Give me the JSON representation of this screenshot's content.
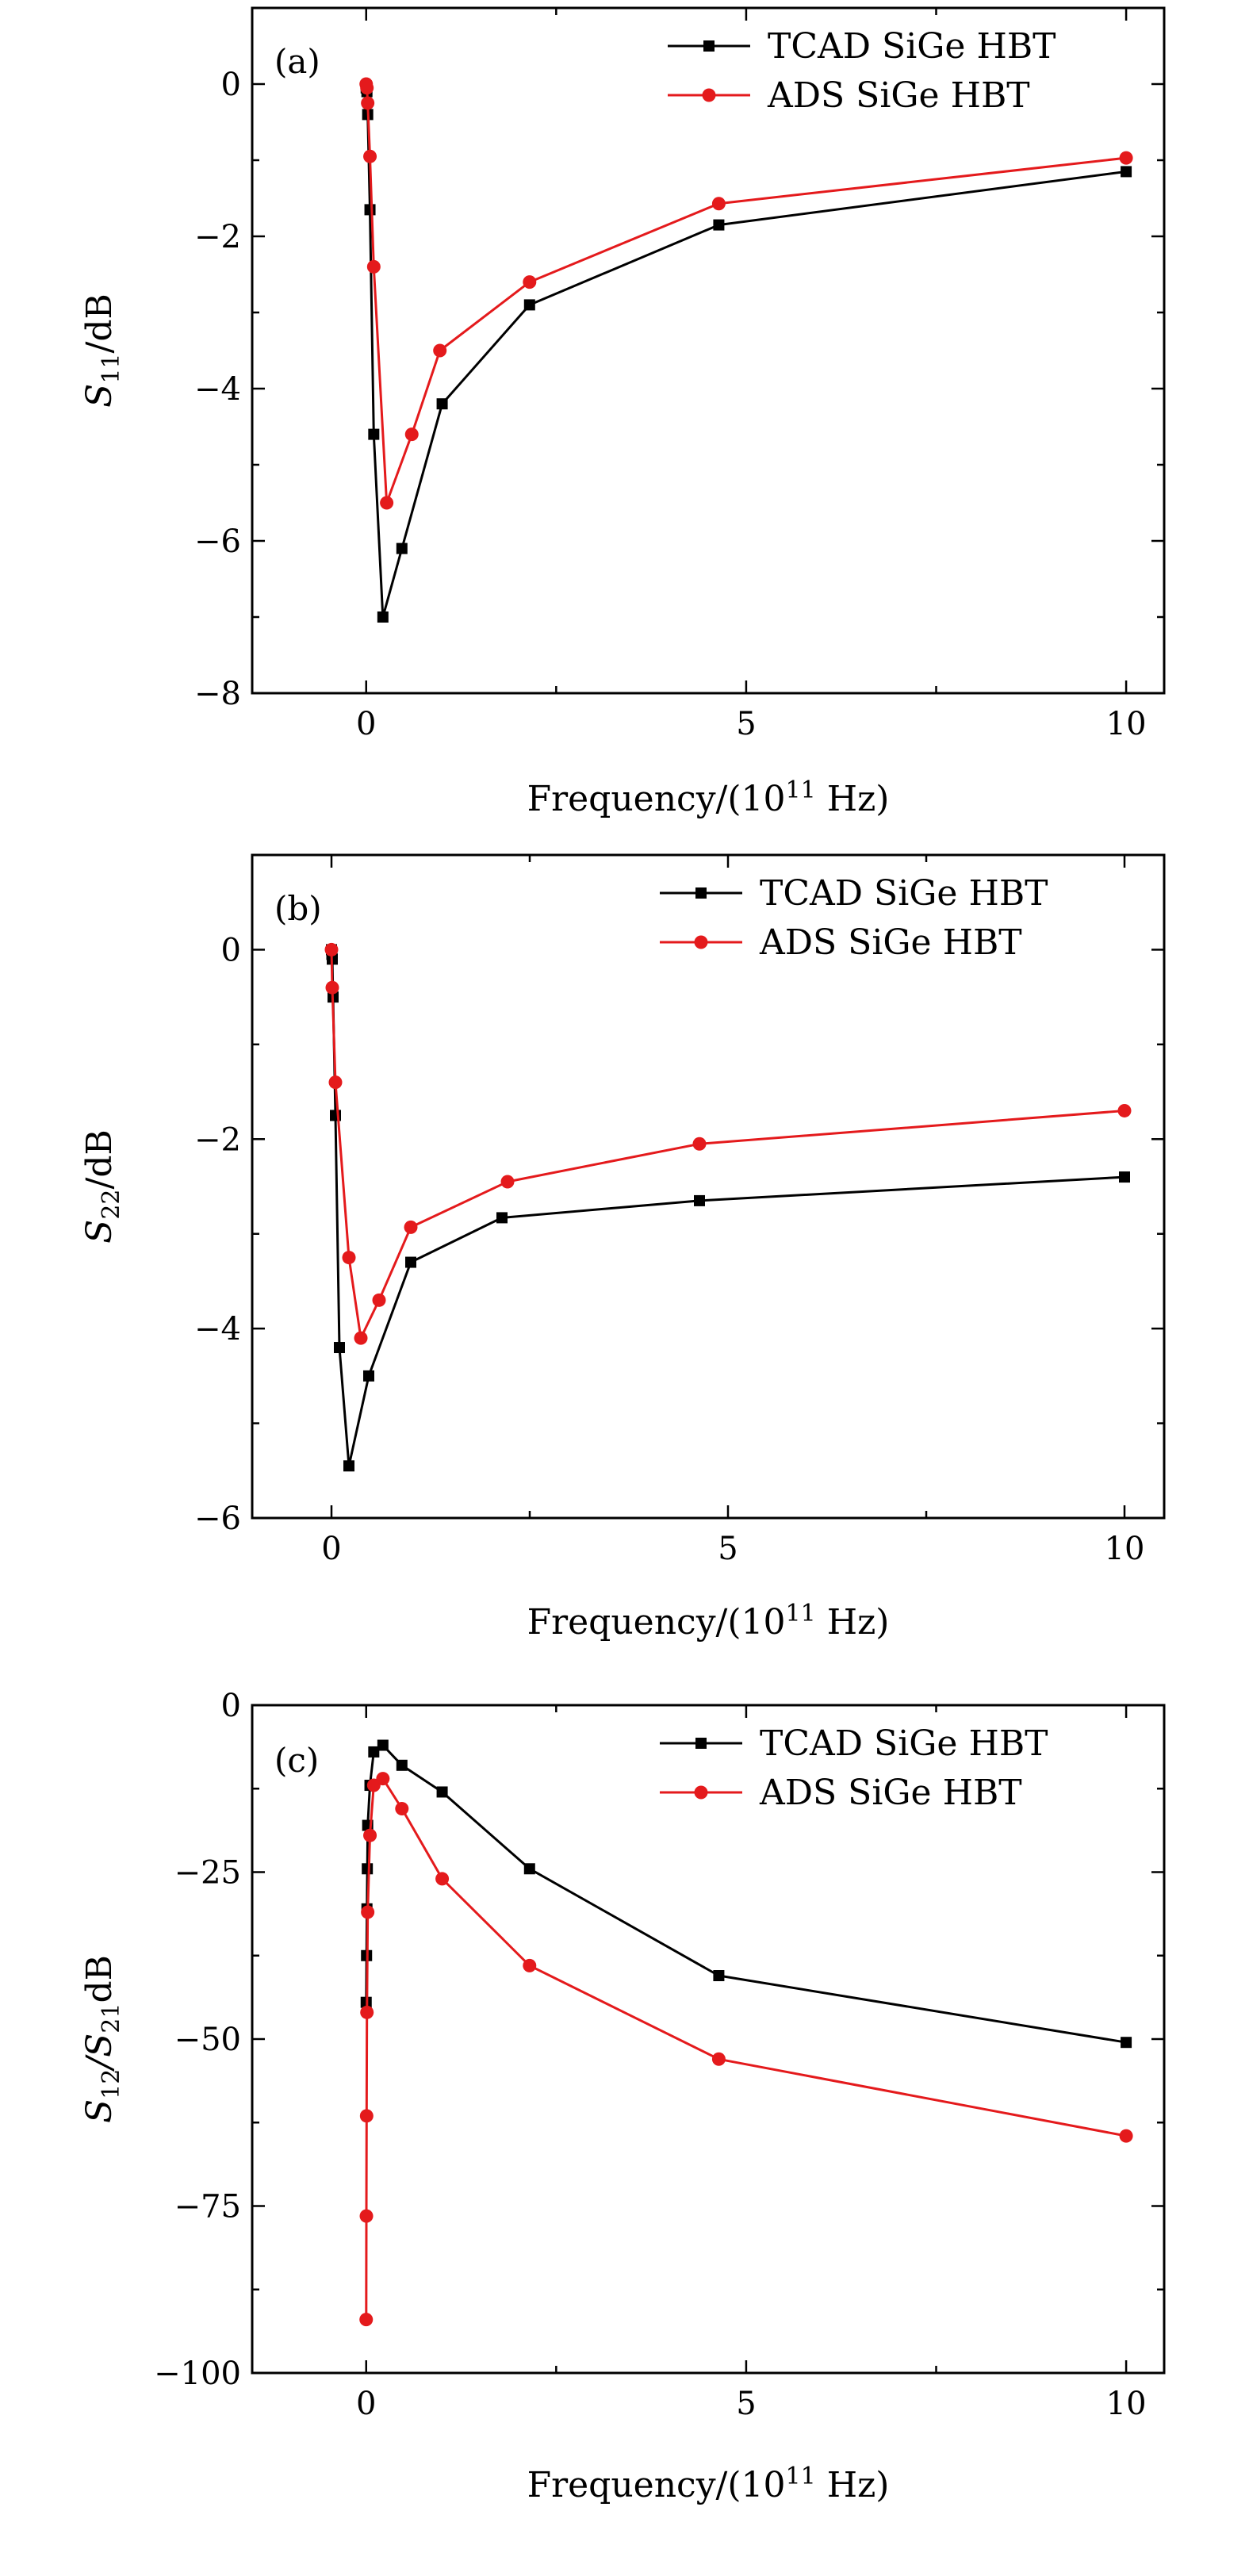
{
  "chart_data": [
    {
      "type": "line",
      "panel_label": "(a)",
      "xlabel": "Frequency/(10",
      "xlabel_sup": "11",
      "xlabel_tail": " Hz)",
      "ylabel_main": "S",
      "ylabel_sub": "11",
      "ylabel_tail": "/dB",
      "xlim": [
        -1.5,
        10.5
      ],
      "ylim": [
        -8,
        1
      ],
      "xticks": [
        0,
        5,
        10
      ],
      "xtick_labels": [
        "0",
        "5",
        "10"
      ],
      "xminor": [
        2.5,
        7.5
      ],
      "yticks": [
        0,
        -2,
        -4,
        -6,
        -8
      ],
      "ytick_labels": [
        "0",
        "−2",
        "−4",
        "−6",
        "−8"
      ],
      "yminor": [
        -1,
        -3,
        -5,
        -7
      ],
      "legend_position": "top-right",
      "series": [
        {
          "name": "TCAD SiGe HBT",
          "color": "#000000",
          "marker": "square",
          "x": [
            0.0,
            0.01,
            0.02,
            0.05,
            0.1,
            0.22,
            0.47,
            1.0,
            2.15,
            4.64,
            10.0
          ],
          "y": [
            -0.05,
            -0.1,
            -0.4,
            -1.65,
            -4.6,
            -7.0,
            -6.1,
            -4.2,
            -2.9,
            -1.85,
            -1.15
          ]
        },
        {
          "name": "ADS SiGe HBT",
          "color": "#e41a1c",
          "marker": "circle",
          "x": [
            0.0,
            0.01,
            0.02,
            0.05,
            0.1,
            0.27,
            0.6,
            0.97,
            2.15,
            4.64,
            10.0
          ],
          "y": [
            0.0,
            -0.05,
            -0.25,
            -0.95,
            -2.4,
            -5.5,
            -4.6,
            -3.5,
            -2.6,
            -1.57,
            -0.97
          ]
        }
      ]
    },
    {
      "type": "line",
      "panel_label": "(b)",
      "xlabel": "Frequency/(10",
      "xlabel_sup": "11",
      "xlabel_tail": " Hz)",
      "ylabel_main": "S",
      "ylabel_sub": "22",
      "ylabel_tail": "/dB",
      "xlim": [
        -1,
        10.5
      ],
      "ylim": [
        -6,
        1
      ],
      "xticks": [
        0,
        5,
        10
      ],
      "xtick_labels": [
        "0",
        "5",
        "10"
      ],
      "xminor": [
        2.5,
        7.5
      ],
      "yticks": [
        0,
        -2,
        -4,
        -6
      ],
      "ytick_labels": [
        "0",
        "−2",
        "−4",
        "−6"
      ],
      "yminor": [
        -1,
        -3,
        -5
      ],
      "legend_position": "top-right",
      "series": [
        {
          "name": "TCAD SiGe HBT",
          "color": "#000000",
          "marker": "square",
          "x": [
            0.0,
            0.005,
            0.01,
            0.02,
            0.05,
            0.1,
            0.22,
            0.47,
            1.0,
            2.15,
            4.64,
            10.0
          ],
          "y": [
            0.0,
            -0.05,
            -0.1,
            -0.5,
            -1.75,
            -4.2,
            -5.45,
            -4.5,
            -3.3,
            -2.83,
            -2.65,
            -2.4
          ]
        },
        {
          "name": "ADS SiGe HBT",
          "color": "#e41a1c",
          "marker": "circle",
          "x": [
            0.0,
            0.01,
            0.05,
            0.22,
            0.37,
            0.6,
            1.0,
            2.22,
            4.64,
            10.0
          ],
          "y": [
            0.0,
            -0.4,
            -1.4,
            -3.25,
            -4.1,
            -3.7,
            -2.93,
            -2.45,
            -2.05,
            -1.7
          ]
        }
      ]
    },
    {
      "type": "line",
      "panel_label": "(c)",
      "xlabel": "Frequency/(10",
      "xlabel_sup": "11",
      "xlabel_tail": " Hz)",
      "ylabel_main": "S",
      "ylabel_sub": "12",
      "ylabel_mid": "/S",
      "ylabel_sub2": "21",
      "ylabel_tail": "dB",
      "xlim": [
        -1.5,
        10.5
      ],
      "ylim": [
        -100,
        0
      ],
      "xticks": [
        0,
        5,
        10
      ],
      "xtick_labels": [
        "0",
        "5",
        "10"
      ],
      "xminor": [
        2.5,
        7.5
      ],
      "yticks": [
        0,
        -25,
        -50,
        -75,
        -100
      ],
      "ytick_labels": [
        "0",
        "−25",
        "−50",
        "−75",
        "−100"
      ],
      "yminor": [
        -12.5,
        -37.5,
        -62.5,
        -87.5
      ],
      "legend_position": "top-right",
      "series": [
        {
          "name": "TCAD SiGe HBT",
          "color": "#000000",
          "marker": "square",
          "x": [
            0.0,
            0.005,
            0.01,
            0.015,
            0.02,
            0.05,
            0.1,
            0.22,
            0.47,
            1.0,
            2.15,
            4.64,
            10.0
          ],
          "y": [
            -44.5,
            -37.5,
            -30.5,
            -24.5,
            -18,
            -12,
            -7,
            -6,
            -9,
            -13,
            -24.5,
            -40.5,
            -50.5
          ]
        },
        {
          "name": "ADS SiGe HBT",
          "color": "#e41a1c",
          "marker": "circle",
          "x": [
            0.0,
            0.003,
            0.006,
            0.01,
            0.02,
            0.05,
            0.1,
            0.22,
            0.47,
            1.0,
            2.15,
            4.64,
            10.0
          ],
          "y": [
            -92,
            -76.5,
            -61.5,
            -46,
            -31,
            -19.5,
            -12,
            -11,
            -15.5,
            -26,
            -39,
            -53,
            -64.5
          ]
        }
      ]
    }
  ]
}
